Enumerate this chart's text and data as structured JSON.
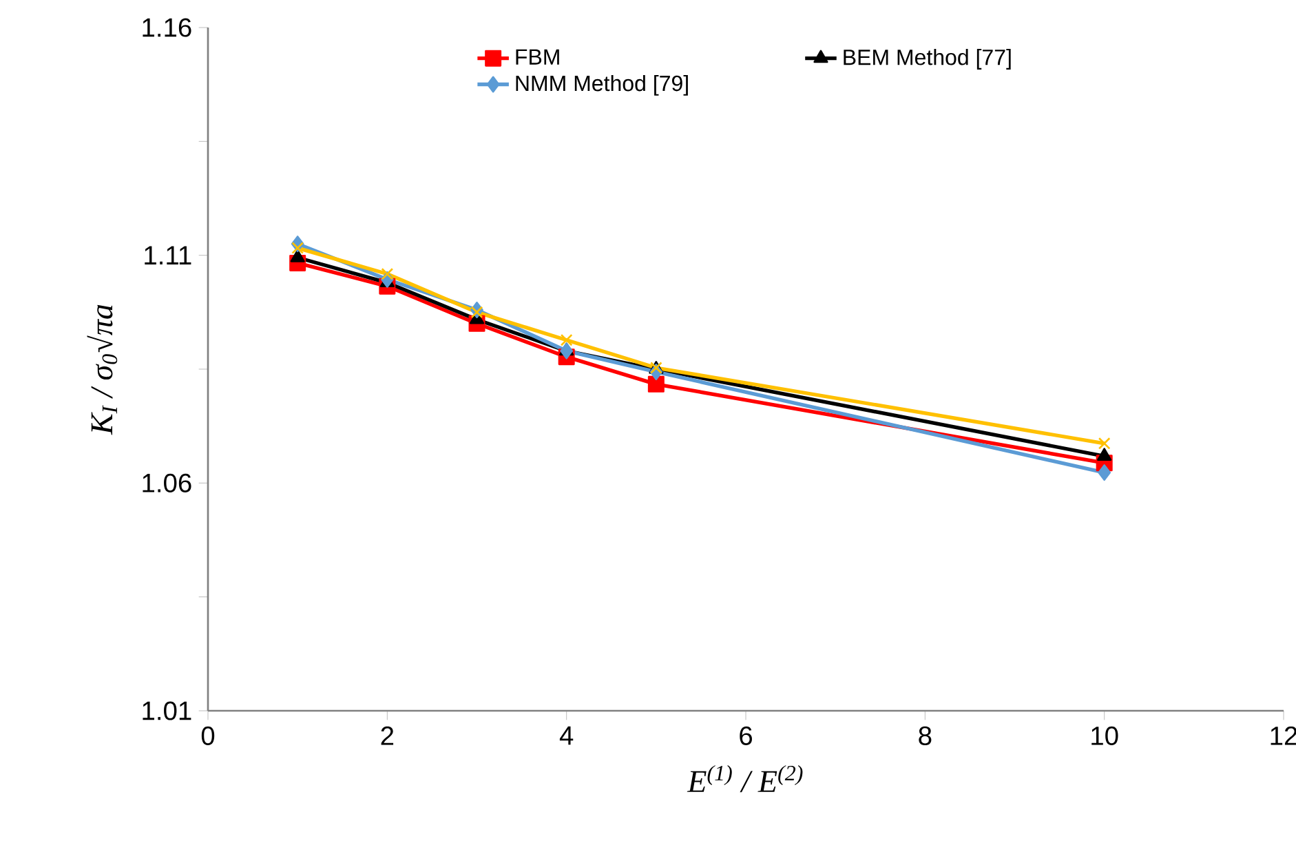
{
  "chart_data": {
    "type": "line",
    "xlabel": "E$^{(1)}$ / E$^{(2)}$",
    "ylabel": "K$_{I}$ / σ$_{0}$√πa",
    "x": [
      1,
      2,
      3,
      4,
      5,
      10
    ],
    "series": [
      {
        "name": "FBM",
        "color": "#ff0000",
        "marker": "square",
        "values": [
          1.1083,
          1.1032,
          1.095,
          1.0877,
          1.0817,
          1.0644
        ]
      },
      {
        "name": "BEM Method [77]",
        "color": "#000000",
        "marker": "triangle",
        "values": [
          1.1095,
          1.104,
          1.0959,
          1.089,
          1.085,
          1.0659
        ]
      },
      {
        "name": "NMM Method [79]",
        "color": "#5b9bd5",
        "marker": "diamond",
        "values": [
          1.1125,
          1.1047,
          1.098,
          1.089,
          1.0844,
          1.0623
        ]
      },
      {
        "color": "#ffc000",
        "marker": "cross",
        "values": [
          1.1116,
          1.1059,
          1.0975,
          1.0914,
          1.0853,
          1.0687
        ]
      }
    ],
    "xlim": [
      0,
      12
    ],
    "xticks": [
      0,
      2,
      4,
      6,
      8,
      10,
      12
    ],
    "ylim": [
      1.01,
      1.16
    ],
    "yticks": [
      1.01,
      {
        "value": 1.035,
        "label": null
      },
      1.06,
      {
        "value": 1.085,
        "label": null
      },
      1.11,
      {
        "value": 1.135,
        "label": null
      },
      1.16
    ],
    "grid": false,
    "legend": "top",
    "line_style": "solid"
  }
}
